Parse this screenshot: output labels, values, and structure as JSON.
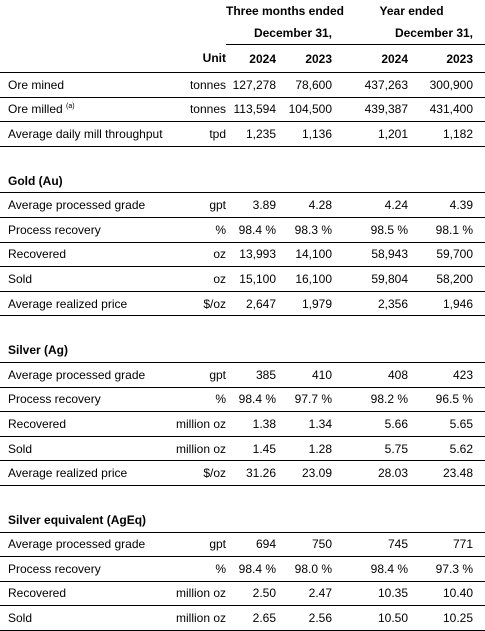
{
  "header": {
    "period_q": "Three months ended",
    "period_y": "Year ended",
    "date_q": "December 31,",
    "date_y": "December 31,",
    "unit": "Unit",
    "years": [
      "2024",
      "2023",
      "2024",
      "2023"
    ]
  },
  "general": [
    {
      "label": "Ore mined",
      "sup": "",
      "unit": "tonnes",
      "values": [
        "127,278",
        "78,600",
        "437,263",
        "300,900"
      ]
    },
    {
      "label": "Ore milled",
      "sup": "(a)",
      "unit": "tonnes",
      "values": [
        "113,594",
        "104,500",
        "439,387",
        "431,400"
      ]
    },
    {
      "label": "Average daily mill throughput",
      "sup": "",
      "unit": "tpd",
      "values": [
        "1,235",
        "1,136",
        "1,201",
        "1,182"
      ]
    }
  ],
  "sections": [
    {
      "title": "Gold (Au)",
      "rows": [
        {
          "label": "Average processed grade",
          "unit": "gpt",
          "values": [
            "3.89",
            "4.28",
            "4.24",
            "4.39"
          ]
        },
        {
          "label": "Process recovery",
          "unit": "%",
          "values": [
            "98.4 %",
            "98.3 %",
            "98.5 %",
            "98.1 %"
          ]
        },
        {
          "label": "Recovered",
          "unit": "oz",
          "values": [
            "13,993",
            "14,100",
            "58,943",
            "59,700"
          ]
        },
        {
          "label": "Sold",
          "unit": "oz",
          "values": [
            "15,100",
            "16,100",
            "59,804",
            "58,200"
          ]
        },
        {
          "label": "Average realized price",
          "unit": "$/oz",
          "values": [
            "2,647",
            "1,979",
            "2,356",
            "1,946"
          ]
        }
      ]
    },
    {
      "title": "Silver (Ag)",
      "rows": [
        {
          "label": "Average processed grade",
          "unit": "gpt",
          "values": [
            "385",
            "410",
            "408",
            "423"
          ]
        },
        {
          "label": "Process recovery",
          "unit": "%",
          "values": [
            "98.4 %",
            "97.7 %",
            "98.2 %",
            "96.5 %"
          ]
        },
        {
          "label": "Recovered",
          "unit": "million oz",
          "values": [
            "1.38",
            "1.34",
            "5.66",
            "5.65"
          ]
        },
        {
          "label": "Sold",
          "unit": "million oz",
          "values": [
            "1.45",
            "1.28",
            "5.75",
            "5.62"
          ]
        },
        {
          "label": "Average realized price",
          "unit": "$/oz",
          "values": [
            "31.26",
            "23.09",
            "28.03",
            "23.48"
          ]
        }
      ]
    },
    {
      "title": "Silver equivalent (AgEq)",
      "rows": [
        {
          "label": "Average processed grade",
          "unit": "gpt",
          "values": [
            "694",
            "750",
            "745",
            "771"
          ]
        },
        {
          "label": "Process recovery",
          "unit": "%",
          "values": [
            "98.4 %",
            "98.0 %",
            "98.4 %",
            "97.3 %"
          ]
        },
        {
          "label": "Recovered",
          "unit": "million oz",
          "values": [
            "2.50",
            "2.47",
            "10.35",
            "10.40"
          ]
        },
        {
          "label": "Sold",
          "unit": "million oz",
          "values": [
            "2.65",
            "2.56",
            "10.50",
            "10.25"
          ]
        }
      ]
    }
  ]
}
